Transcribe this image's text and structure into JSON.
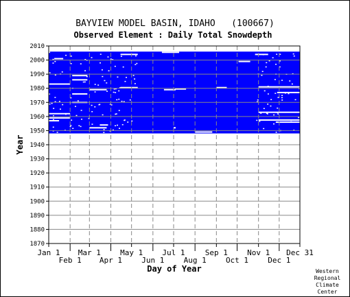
{
  "chart_data": {
    "type": "heatmap",
    "title": "BAYVIEW MODEL BASIN, IDAHO   (100667)",
    "subtitle": "Observed Element : Daily Total Snowdepth",
    "xlabel": "Day of Year",
    "ylabel": "Year",
    "ylim": [
      1870,
      2010
    ],
    "xlim": [
      1,
      365
    ],
    "y_ticks": [
      1870,
      1880,
      1890,
      1900,
      1910,
      1920,
      1930,
      1940,
      1950,
      1960,
      1970,
      1980,
      1990,
      2000,
      2010
    ],
    "x_ticks_top": [
      {
        "label": "Jan 1",
        "day": 1
      },
      {
        "label": "Mar 1",
        "day": 60
      },
      {
        "label": "May 1",
        "day": 121
      },
      {
        "label": "Jul 1",
        "day": 182
      },
      {
        "label": "Sep 1",
        "day": 244
      },
      {
        "label": "Nov 1",
        "day": 305
      },
      {
        "label": "Dec 31",
        "day": 365
      }
    ],
    "x_ticks_bottom": [
      {
        "label": "Feb 1",
        "day": 32
      },
      {
        "label": "Apr 1",
        "day": 91
      },
      {
        "label": "Jun 1",
        "day": 152
      },
      {
        "label": "Aug 1",
        "day": 213
      },
      {
        "label": "Oct 1",
        "day": 274
      },
      {
        "label": "Dec 1",
        "day": 335
      }
    ],
    "data_color": "#0000ff",
    "grid": true,
    "observed_period": {
      "start_year": 1948,
      "end_year": 2006
    },
    "missing_segments": [
      {
        "year": 2005.5,
        "start_day": 1,
        "end_day": 2
      },
      {
        "year": 2005.5,
        "start_day": 365,
        "end_day": 365
      },
      {
        "year": 2004,
        "start_day": 105,
        "end_day": 129
      },
      {
        "year": 2004,
        "start_day": 300,
        "end_day": 318
      },
      {
        "year": 2005.5,
        "start_day": 165,
        "end_day": 189
      },
      {
        "year": 2001,
        "start_day": 9,
        "end_day": 21
      },
      {
        "year": 1999,
        "start_day": 276,
        "end_day": 292
      },
      {
        "year": 1989,
        "start_day": 35,
        "end_day": 56
      },
      {
        "year": 1986,
        "start_day": 35,
        "end_day": 56
      },
      {
        "year": 1983,
        "start_day": 1,
        "end_day": 31
      },
      {
        "year": 1981,
        "start_day": 305,
        "end_day": 365
      },
      {
        "year": 1980.5,
        "start_day": 105,
        "end_day": 129
      },
      {
        "year": 1980.5,
        "start_day": 244,
        "end_day": 258
      },
      {
        "year": 1979,
        "start_day": 60,
        "end_day": 84
      },
      {
        "year": 1979,
        "start_day": 168,
        "end_day": 184
      },
      {
        "year": 1979.5,
        "start_day": 184,
        "end_day": 199
      },
      {
        "year": 1976,
        "start_day": 35,
        "end_day": 56
      },
      {
        "year": 1977,
        "start_day": 332,
        "end_day": 365
      },
      {
        "year": 1970,
        "start_day": 35,
        "end_day": 56
      },
      {
        "year": 1963,
        "start_day": 305,
        "end_day": 365
      },
      {
        "year": 1962,
        "start_day": 1,
        "end_day": 31
      },
      {
        "year": 1959,
        "start_day": 1,
        "end_day": 31
      },
      {
        "year": 1957.5,
        "start_day": 305,
        "end_day": 365
      },
      {
        "year": 1957,
        "start_day": 1,
        "end_day": 15
      },
      {
        "year": 1956,
        "start_day": 330,
        "end_day": 365
      },
      {
        "year": 1954,
        "start_day": 75,
        "end_day": 86
      },
      {
        "year": 1952,
        "start_day": 60,
        "end_day": 84
      },
      {
        "year": 1952,
        "start_day": 182,
        "end_day": 184
      },
      {
        "year": 1949,
        "start_day": 213,
        "end_day": 237
      }
    ]
  },
  "credit": [
    "Western",
    "Regional",
    "Climate",
    "Center"
  ]
}
